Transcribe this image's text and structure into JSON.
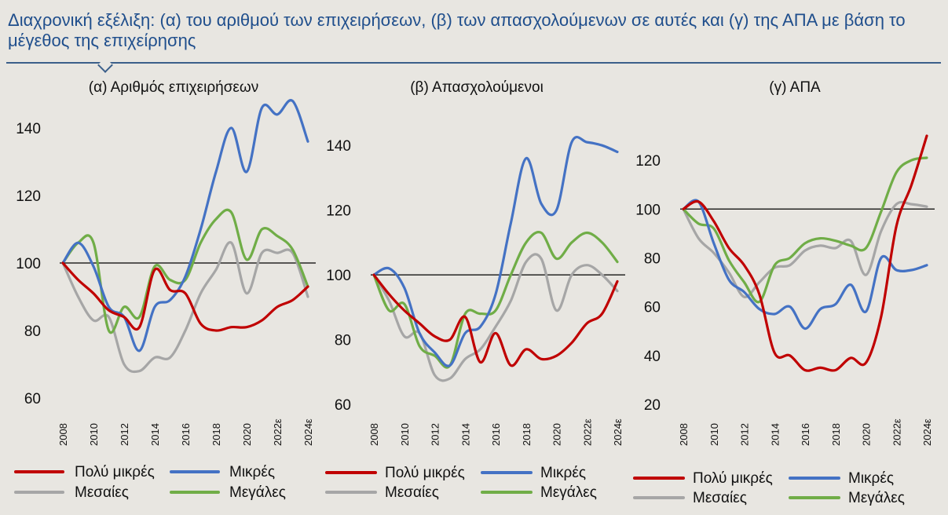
{
  "header": {
    "title": "Διαχρονική εξέλιξη: (α) του αριθμού των επιχειρήσεων, (β) των απασχολούμενων σε αυτές και (γ) της ΑΠΑ με βάση το μέγεθος της επιχείρησης"
  },
  "colors": {
    "very_small": "#c00000",
    "small": "#4472c4",
    "medium": "#a6a6a6",
    "large": "#70ad47",
    "title": "#1f4e8c",
    "background": "#e8e6e1"
  },
  "chart_data": [
    {
      "type": "line",
      "title": "(α) Αριθμός επιχειρήσεων",
      "xlabel": "",
      "ylabel": "",
      "x": [
        2008,
        2009,
        2010,
        2011,
        2012,
        2013,
        2014,
        2015,
        2016,
        2017,
        2018,
        2019,
        2020,
        2021,
        2022,
        2023,
        2024
      ],
      "x_tick_labels": [
        "2008",
        "2010",
        "2012",
        "2014",
        "2016",
        "2018",
        "2020",
        "2022ε",
        "2024ε"
      ],
      "ylim": [
        60,
        150
      ],
      "y_ticks": [
        60,
        80,
        100,
        120,
        140
      ],
      "reference_line": 100,
      "grid": false,
      "legend_position": "bottom",
      "series": [
        {
          "name": "Πολύ μικρές",
          "color": "#c00000",
          "values": [
            100,
            95,
            91,
            86,
            84,
            81,
            98,
            92,
            91,
            82,
            80,
            81,
            81,
            83,
            87,
            89,
            93
          ]
        },
        {
          "name": "Μικρές",
          "color": "#4472c4",
          "values": [
            100,
            106,
            99,
            87,
            84,
            74,
            87,
            89,
            96,
            110,
            127,
            140,
            127,
            146,
            144,
            148,
            136
          ]
        },
        {
          "name": "Μεσαίες",
          "color": "#a6a6a6",
          "values": [
            100,
            90,
            83,
            84,
            70,
            68,
            72,
            72,
            80,
            91,
            98,
            106,
            91,
            103,
            103,
            103,
            90
          ]
        },
        {
          "name": "Μεγάλες",
          "color": "#70ad47",
          "values": [
            100,
            106,
            106,
            80,
            87,
            84,
            99,
            95,
            95,
            106,
            113,
            115,
            101,
            110,
            108,
            104,
            93
          ]
        }
      ]
    },
    {
      "type": "line",
      "title": "(β) Απασχολούμενοι",
      "xlabel": "",
      "ylabel": "",
      "x": [
        2008,
        2009,
        2010,
        2011,
        2012,
        2013,
        2014,
        2015,
        2016,
        2017,
        2018,
        2019,
        2020,
        2021,
        2022,
        2023,
        2024
      ],
      "x_tick_labels": [
        "2008",
        "2010",
        "2012",
        "2014",
        "2016",
        "2018",
        "2020",
        "2022ε",
        "2024ε"
      ],
      "ylim": [
        60,
        150
      ],
      "y_ticks": [
        60,
        80,
        100,
        120,
        140
      ],
      "reference_line": 100,
      "grid": false,
      "legend_position": "bottom",
      "series": [
        {
          "name": "Πολύ μικρές",
          "color": "#c00000",
          "values": [
            100,
            94,
            89,
            85,
            81,
            80,
            87,
            73,
            82,
            72,
            77,
            74,
            75,
            79,
            85,
            88,
            98
          ]
        },
        {
          "name": "Μικρές",
          "color": "#4472c4",
          "values": [
            100,
            102,
            96,
            82,
            76,
            72,
            82,
            84,
            94,
            116,
            136,
            122,
            120,
            141,
            141,
            140,
            138
          ]
        },
        {
          "name": "Μεσαίες",
          "color": "#a6a6a6",
          "values": [
            100,
            92,
            81,
            82,
            69,
            68,
            74,
            77,
            84,
            92,
            104,
            105,
            89,
            100,
            103,
            100,
            95
          ]
        },
        {
          "name": "Μεγάλες",
          "color": "#70ad47",
          "values": [
            100,
            89,
            91,
            78,
            75,
            72,
            88,
            88,
            89,
            100,
            110,
            113,
            105,
            110,
            113,
            110,
            104
          ]
        }
      ]
    },
    {
      "type": "line",
      "title": "(γ) ΑΠΑ",
      "xlabel": "",
      "ylabel": "",
      "x": [
        2008,
        2009,
        2010,
        2011,
        2012,
        2013,
        2014,
        2015,
        2016,
        2017,
        2018,
        2019,
        2020,
        2021,
        2022,
        2023,
        2024
      ],
      "x_tick_labels": [
        "2008",
        "2010",
        "2012",
        "2014",
        "2016",
        "2018",
        "2020",
        "2022ε",
        "2024ε"
      ],
      "ylim": [
        20,
        130
      ],
      "y_ticks": [
        20,
        40,
        60,
        80,
        100,
        120
      ],
      "reference_line": 100,
      "grid": false,
      "legend_position": "bottom",
      "series": [
        {
          "name": "Πολύ μικρές",
          "color": "#c00000",
          "values": [
            100,
            103,
            95,
            84,
            77,
            65,
            41,
            40,
            34,
            35,
            34,
            39,
            37,
            56,
            93,
            110,
            130
          ]
        },
        {
          "name": "Μικρές",
          "color": "#4472c4",
          "values": [
            100,
            103,
            86,
            71,
            66,
            59,
            57,
            60,
            51,
            59,
            61,
            69,
            58,
            80,
            75,
            75,
            77
          ]
        },
        {
          "name": "Μεσαίες",
          "color": "#a6a6a6",
          "values": [
            100,
            88,
            82,
            74,
            64,
            70,
            76,
            77,
            83,
            85,
            84,
            87,
            73,
            91,
            102,
            102,
            101
          ]
        },
        {
          "name": "Μεγάλες",
          "color": "#70ad47",
          "values": [
            100,
            94,
            92,
            79,
            70,
            62,
            77,
            80,
            86,
            88,
            87,
            85,
            84,
            99,
            115,
            120,
            121
          ]
        }
      ]
    }
  ]
}
